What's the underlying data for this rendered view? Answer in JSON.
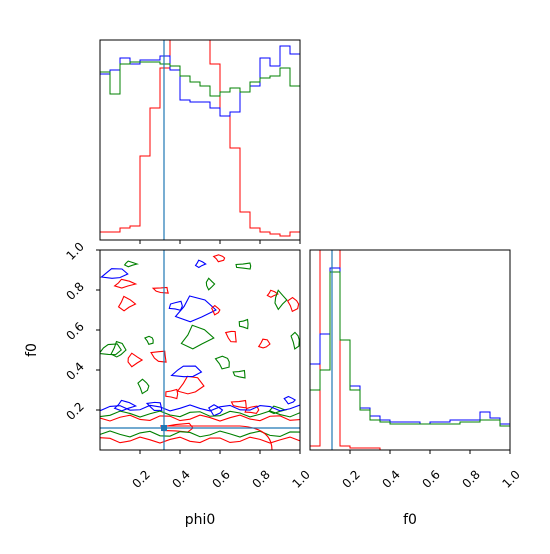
{
  "chart_data": [
    {
      "type": "histogram",
      "panel": "phi0 marginal",
      "xlim": [
        0,
        1
      ],
      "truth": 0.32,
      "bins": 20,
      "series": [
        {
          "color": "#ff0000",
          "values": [
            0.04,
            0.04,
            0.06,
            0.07,
            0.42,
            0.66,
            0.86,
            1.05,
            1.1,
            1.1,
            1.1,
            0.88,
            0.62,
            0.46,
            0.14,
            0.06,
            0.04,
            0.03,
            0.02,
            0.04
          ]
        },
        {
          "color": "#0000ff",
          "values": [
            0.83,
            0.85,
            0.91,
            0.88,
            0.9,
            0.9,
            0.92,
            0.85,
            0.7,
            0.69,
            0.69,
            0.66,
            0.62,
            0.64,
            0.74,
            0.77,
            0.91,
            0.87,
            0.97,
            0.93
          ]
        },
        {
          "color": "#008000",
          "values": [
            0.84,
            0.73,
            0.88,
            0.89,
            0.89,
            0.89,
            0.88,
            0.87,
            0.82,
            0.79,
            0.77,
            0.72,
            0.74,
            0.76,
            0.74,
            0.79,
            0.81,
            0.82,
            0.86,
            0.77
          ]
        }
      ]
    },
    {
      "type": "contour",
      "panel": "phi0 vs f0",
      "xlabel": "phi0",
      "ylabel": "f0",
      "xlim": [
        0,
        1
      ],
      "ylim": [
        0,
        1
      ],
      "xticks": [
        "0.2",
        "0.4",
        "0.6",
        "0.8",
        "1.0"
      ],
      "yticks": [
        "0.2",
        "0.4",
        "0.6",
        "0.8",
        "1.0"
      ],
      "truth": {
        "x": 0.32,
        "y": 0.11
      }
    },
    {
      "type": "histogram",
      "panel": "f0 marginal",
      "xlabel": "f0",
      "xlim": [
        0,
        1
      ],
      "xticks": [
        "0.2",
        "0.4",
        "0.6",
        "0.8",
        "1.0"
      ],
      "truth": 0.11,
      "bins": 20,
      "series": [
        {
          "color": "#ff0000",
          "values": [
            0.02,
            1.2,
            1.2,
            0.02,
            0.01,
            0.01,
            0.01,
            0.0,
            0.0,
            0.0,
            0.0,
            0.0,
            0.0,
            0.0,
            0.0,
            0.0,
            0.0,
            0.0,
            0.0,
            0.0
          ]
        },
        {
          "color": "#0000ff",
          "values": [
            0.43,
            0.58,
            0.91,
            0.55,
            0.32,
            0.21,
            0.17,
            0.15,
            0.14,
            0.14,
            0.14,
            0.13,
            0.14,
            0.14,
            0.15,
            0.15,
            0.15,
            0.19,
            0.16,
            0.13
          ]
        },
        {
          "color": "#008000",
          "values": [
            0.3,
            0.4,
            0.89,
            0.55,
            0.3,
            0.2,
            0.15,
            0.14,
            0.13,
            0.13,
            0.13,
            0.13,
            0.13,
            0.13,
            0.13,
            0.14,
            0.14,
            0.15,
            0.15,
            0.12
          ]
        }
      ]
    }
  ]
}
